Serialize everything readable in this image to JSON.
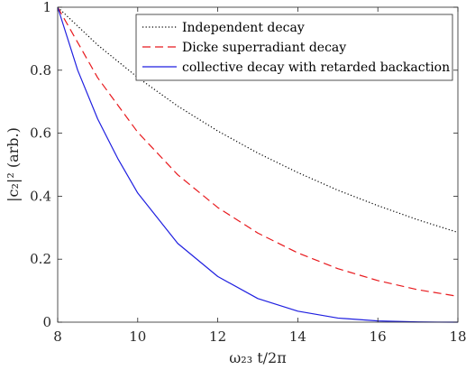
{
  "chart_data": {
    "type": "line",
    "xlabel": "ω₂₃ t/2π",
    "ylabel": "|c₂|² (arb.)",
    "xlim": [
      8,
      18
    ],
    "ylim": [
      0,
      1
    ],
    "xticks": [
      8,
      10,
      12,
      14,
      16,
      18
    ],
    "yticks": [
      0,
      0.2,
      0.4,
      0.6,
      0.8,
      1
    ],
    "xtick_labels": [
      "8",
      "10",
      "12",
      "14",
      "16",
      "18"
    ],
    "ytick_labels": [
      "0",
      "0.2",
      "0.4",
      "0.6",
      "0.8",
      "1"
    ],
    "grid": false,
    "legend_position": "top-right",
    "series": [
      {
        "name": "Independent decay",
        "color": "#000000",
        "style": "dotted",
        "x": [
          8,
          9,
          10,
          11,
          12,
          13,
          14,
          15,
          16,
          17,
          18
        ],
        "y": [
          1.0,
          0.88,
          0.777,
          0.686,
          0.607,
          0.537,
          0.475,
          0.419,
          0.37,
          0.325,
          0.285
        ]
      },
      {
        "name": "Dicke superradiant decay",
        "color": "#e8191d",
        "style": "dashed",
        "x": [
          8,
          9,
          10,
          11,
          12,
          13,
          14,
          15,
          16,
          17,
          18
        ],
        "y": [
          1.0,
          0.776,
          0.603,
          0.468,
          0.364,
          0.283,
          0.22,
          0.17,
          0.132,
          0.103,
          0.082
        ]
      },
      {
        "name": "collective decay with retarded backaction",
        "color": "#1f1fe0",
        "style": "solid",
        "x": [
          8,
          8.5,
          9,
          9.5,
          10,
          11,
          12,
          13,
          14,
          15,
          16,
          17,
          17.5,
          18
        ],
        "y": [
          1.0,
          0.8,
          0.645,
          0.52,
          0.41,
          0.25,
          0.145,
          0.075,
          0.035,
          0.013,
          0.004,
          0.0008,
          0.0002,
          0.0
        ]
      }
    ]
  }
}
